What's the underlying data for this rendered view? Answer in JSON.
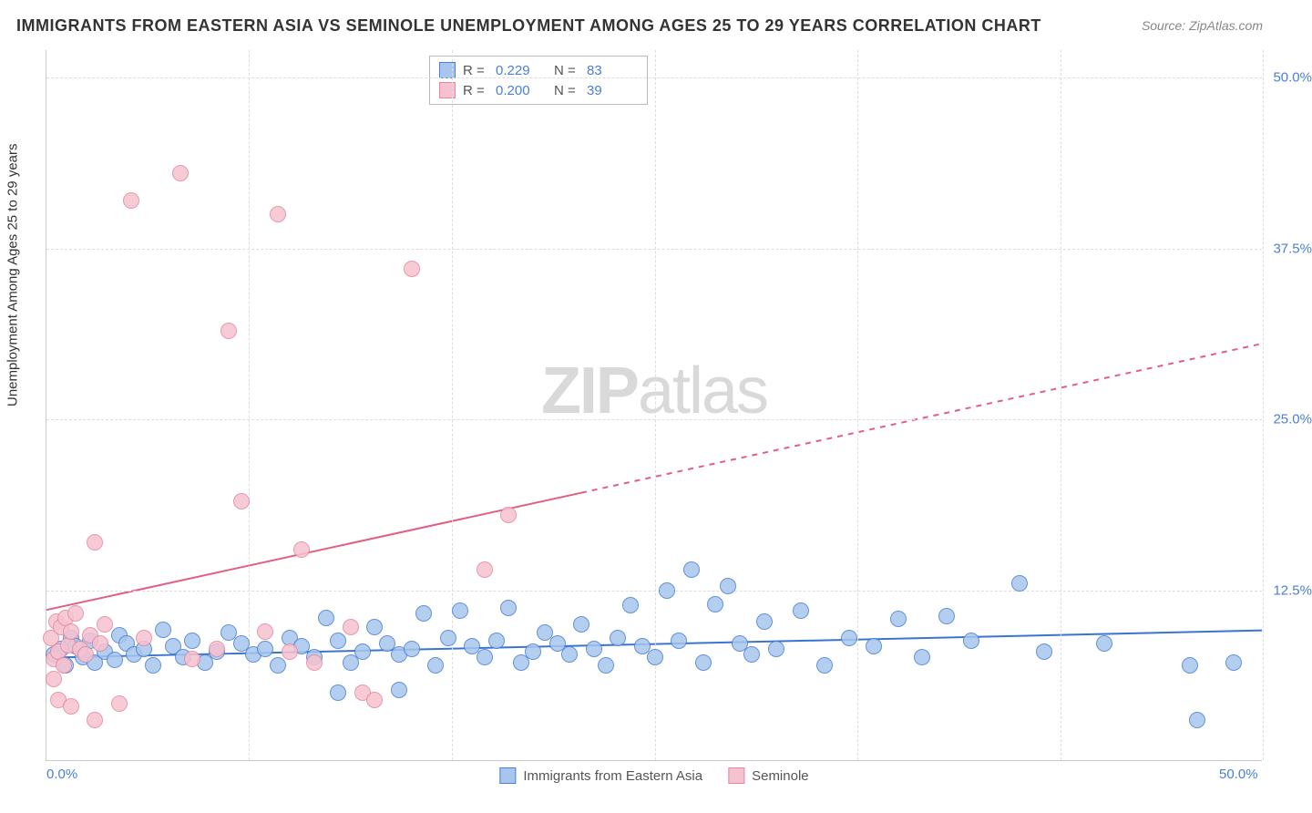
{
  "title": "IMMIGRANTS FROM EASTERN ASIA VS SEMINOLE UNEMPLOYMENT AMONG AGES 25 TO 29 YEARS CORRELATION CHART",
  "source": "Source: ZipAtlas.com",
  "watermark_a": "ZIP",
  "watermark_b": "atlas",
  "y_axis_title": "Unemployment Among Ages 25 to 29 years",
  "chart": {
    "type": "scatter",
    "background_color": "#ffffff",
    "grid_color": "#dddddd",
    "axis_color": "#cccccc",
    "tick_label_color": "#4a7fd4",
    "tick_fontsize": 15,
    "title_fontsize": 18,
    "title_color": "#333333",
    "xlim": [
      0,
      50
    ],
    "ylim": [
      0,
      52
    ],
    "y_ticks": [
      {
        "value": 12.5,
        "label": "12.5%"
      },
      {
        "value": 25.0,
        "label": "25.0%"
      },
      {
        "value": 37.5,
        "label": "37.5%"
      },
      {
        "value": 50.0,
        "label": "50.0%"
      }
    ],
    "x_grid_values": [
      8.33,
      16.67,
      25.0,
      33.33,
      41.67,
      50.0
    ],
    "x_ticks": [
      {
        "value": 0,
        "label": "0.0%"
      },
      {
        "value": 50,
        "label": "50.0%"
      }
    ],
    "marker_radius": 9,
    "marker_fill_opacity": 0.35,
    "marker_stroke_width": 1.5,
    "series": [
      {
        "name": "Immigrants from Eastern Asia",
        "color_stroke": "#4a7fd4",
        "color_fill": "#a8c6ed",
        "R": "0.229",
        "N": "83",
        "trend": {
          "x1": 0,
          "y1": 7.5,
          "x2": 50,
          "y2": 9.5,
          "dash_from_x": 50,
          "color": "#3b74cf",
          "width": 2
        },
        "points": [
          [
            0.3,
            7.8
          ],
          [
            0.6,
            8.2
          ],
          [
            0.8,
            7.0
          ],
          [
            1.0,
            9.0
          ],
          [
            1.2,
            8.4
          ],
          [
            1.5,
            7.6
          ],
          [
            1.8,
            8.8
          ],
          [
            2.0,
            7.2
          ],
          [
            2.4,
            8.0
          ],
          [
            2.8,
            7.4
          ],
          [
            3.0,
            9.2
          ],
          [
            3.3,
            8.6
          ],
          [
            3.6,
            7.8
          ],
          [
            4.0,
            8.2
          ],
          [
            4.4,
            7.0
          ],
          [
            4.8,
            9.6
          ],
          [
            5.2,
            8.4
          ],
          [
            5.6,
            7.6
          ],
          [
            6.0,
            8.8
          ],
          [
            6.5,
            7.2
          ],
          [
            7.0,
            8.0
          ],
          [
            7.5,
            9.4
          ],
          [
            8.0,
            8.6
          ],
          [
            8.5,
            7.8
          ],
          [
            9.0,
            8.2
          ],
          [
            9.5,
            7.0
          ],
          [
            10.0,
            9.0
          ],
          [
            10.5,
            8.4
          ],
          [
            11.0,
            7.6
          ],
          [
            11.5,
            10.5
          ],
          [
            12.0,
            8.8
          ],
          [
            12.5,
            7.2
          ],
          [
            13.0,
            8.0
          ],
          [
            13.5,
            9.8
          ],
          [
            14.0,
            8.6
          ],
          [
            14.5,
            7.8
          ],
          [
            15.0,
            8.2
          ],
          [
            15.5,
            10.8
          ],
          [
            16.0,
            7.0
          ],
          [
            16.5,
            9.0
          ],
          [
            17.0,
            11.0
          ],
          [
            17.5,
            8.4
          ],
          [
            18.0,
            7.6
          ],
          [
            18.5,
            8.8
          ],
          [
            19.0,
            11.2
          ],
          [
            19.5,
            7.2
          ],
          [
            20.0,
            8.0
          ],
          [
            20.5,
            9.4
          ],
          [
            21.0,
            8.6
          ],
          [
            21.5,
            7.8
          ],
          [
            22.0,
            10.0
          ],
          [
            22.5,
            8.2
          ],
          [
            23.0,
            7.0
          ],
          [
            23.5,
            9.0
          ],
          [
            24.0,
            11.4
          ],
          [
            24.5,
            8.4
          ],
          [
            25.0,
            7.6
          ],
          [
            25.5,
            12.5
          ],
          [
            26.0,
            8.8
          ],
          [
            26.5,
            14.0
          ],
          [
            27.0,
            7.2
          ],
          [
            27.5,
            11.5
          ],
          [
            28.0,
            12.8
          ],
          [
            28.5,
            8.6
          ],
          [
            29.0,
            7.8
          ],
          [
            29.5,
            10.2
          ],
          [
            30.0,
            8.2
          ],
          [
            31.0,
            11.0
          ],
          [
            32.0,
            7.0
          ],
          [
            33.0,
            9.0
          ],
          [
            34.0,
            8.4
          ],
          [
            35.0,
            10.4
          ],
          [
            36.0,
            7.6
          ],
          [
            37.0,
            10.6
          ],
          [
            38.0,
            8.8
          ],
          [
            40.0,
            13.0
          ],
          [
            41.0,
            8.0
          ],
          [
            43.5,
            8.6
          ],
          [
            47.0,
            7.0
          ],
          [
            47.3,
            3.0
          ],
          [
            48.8,
            7.2
          ],
          [
            14.5,
            5.2
          ],
          [
            12.0,
            5.0
          ]
        ]
      },
      {
        "name": "Seminole",
        "color_stroke": "#e6879f",
        "color_fill": "#f6c2d0",
        "R": "0.200",
        "N": "39",
        "trend": {
          "x1": 0,
          "y1": 11.0,
          "x2": 50,
          "y2": 30.5,
          "dash_from_x": 22,
          "color": "#e15f83",
          "width": 2
        },
        "points": [
          [
            0.2,
            9.0
          ],
          [
            0.3,
            7.5
          ],
          [
            0.4,
            10.2
          ],
          [
            0.5,
            8.0
          ],
          [
            0.6,
            9.8
          ],
          [
            0.7,
            7.0
          ],
          [
            0.8,
            10.5
          ],
          [
            0.9,
            8.5
          ],
          [
            1.0,
            9.5
          ],
          [
            0.3,
            6.0
          ],
          [
            1.2,
            10.8
          ],
          [
            1.4,
            8.2
          ],
          [
            1.6,
            7.8
          ],
          [
            1.8,
            9.2
          ],
          [
            2.0,
            16.0
          ],
          [
            2.2,
            8.6
          ],
          [
            2.4,
            10.0
          ],
          [
            0.5,
            4.5
          ],
          [
            1.0,
            4.0
          ],
          [
            2.0,
            3.0
          ],
          [
            3.0,
            4.2
          ],
          [
            3.5,
            41.0
          ],
          [
            4.0,
            9.0
          ],
          [
            5.5,
            43.0
          ],
          [
            6.0,
            7.5
          ],
          [
            7.0,
            8.2
          ],
          [
            7.5,
            31.5
          ],
          [
            8.0,
            19.0
          ],
          [
            9.0,
            9.5
          ],
          [
            9.5,
            40.0
          ],
          [
            10.0,
            8.0
          ],
          [
            10.5,
            15.5
          ],
          [
            11.0,
            7.2
          ],
          [
            12.5,
            9.8
          ],
          [
            13.0,
            5.0
          ],
          [
            13.5,
            4.5
          ],
          [
            15.0,
            36.0
          ],
          [
            18.0,
            14.0
          ],
          [
            19.0,
            18.0
          ]
        ]
      }
    ]
  },
  "legend_bottom": [
    {
      "label": "Immigrants from Eastern Asia",
      "series_index": 0
    },
    {
      "label": "Seminole",
      "series_index": 1
    }
  ]
}
